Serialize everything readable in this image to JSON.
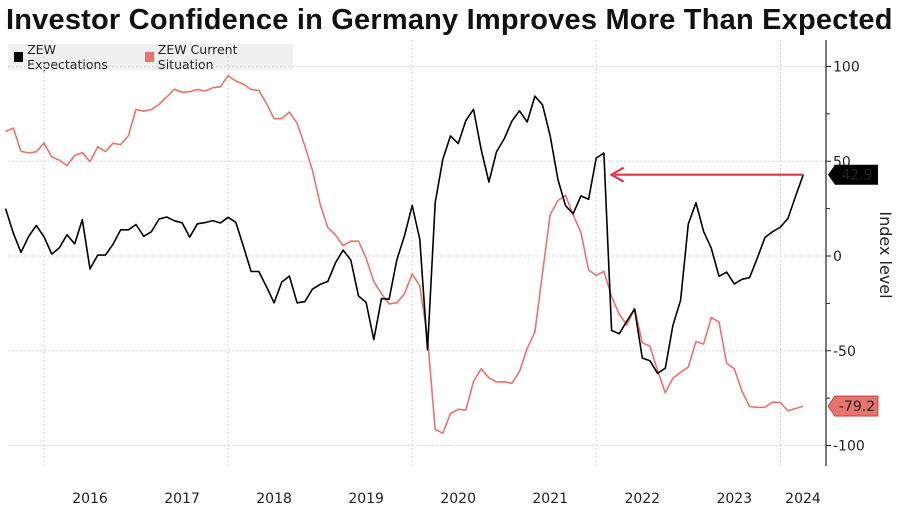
{
  "chart_data": {
    "type": "line",
    "title": "Investor Confidence in Germany Improves More Than Expected",
    "xlabel": "",
    "ylabel": "Index level",
    "ylim": [
      -110,
      115
    ],
    "yticks": [
      100,
      50,
      0,
      -50,
      -100
    ],
    "x_start": "2015-08",
    "x_end": "2024-04",
    "year_labels": [
      "2016",
      "2017",
      "2018",
      "2019",
      "2020",
      "2021",
      "2022",
      "2023",
      "2024"
    ],
    "legend_position": "top-left",
    "grid": true,
    "series": [
      {
        "name": "ZEW Expectations",
        "color": "#000000",
        "last_value_label": "42.9",
        "values": [
          25.0,
          12.1,
          1.9,
          10.4,
          16.1,
          10.2,
          1.0,
          4.3,
          11.2,
          6.4,
          19.2,
          -6.8,
          0.5,
          0.5,
          6.2,
          13.8,
          13.8,
          16.6,
          10.4,
          12.8,
          19.5,
          20.6,
          18.6,
          17.5,
          10.0,
          17.0,
          17.6,
          18.7,
          17.4,
          20.4,
          17.8,
          5.1,
          -8.2,
          -8.2,
          -16.1,
          -24.7,
          -13.7,
          -10.6,
          -24.7,
          -24.1,
          -17.5,
          -15.0,
          -13.4,
          -3.6,
          3.1,
          -2.1,
          -21.1,
          -24.5,
          -44.1,
          -22.5,
          -22.8,
          -2.1,
          10.7,
          26.7,
          8.7,
          -49.5,
          28.2,
          51.0,
          63.4,
          59.3,
          71.5,
          77.4,
          56.1,
          39.0,
          55.0,
          61.8,
          71.2,
          76.6,
          70.7,
          84.4,
          79.8,
          63.3,
          40.4,
          26.5,
          22.3,
          31.7,
          29.9,
          51.7,
          54.3,
          -39.3,
          -41.0,
          -34.3,
          -28.0,
          -53.8,
          -55.3,
          -61.9,
          -59.2,
          -36.7,
          -23.3,
          16.9,
          28.1,
          13.0,
          4.1,
          -10.7,
          -8.5,
          -14.7,
          -12.3,
          -11.4,
          -1.1,
          9.8,
          12.8,
          15.2,
          19.9,
          31.7,
          42.9
        ]
      },
      {
        "name": "ZEW Current Situation",
        "color": "#e8736c",
        "last_value_label": "-79.2",
        "values": [
          65.7,
          67.5,
          55.2,
          54.4,
          55.0,
          59.7,
          52.3,
          50.6,
          47.7,
          53.1,
          54.5,
          49.8,
          57.6,
          55.1,
          59.5,
          58.8,
          63.5,
          77.3,
          76.4,
          77.3,
          80.1,
          83.9,
          88.0,
          86.4,
          86.7,
          87.9,
          87.0,
          88.8,
          89.3,
          95.2,
          92.3,
          90.7,
          87.9,
          87.4,
          80.6,
          72.4,
          72.6,
          76.0,
          70.1,
          58.2,
          45.3,
          27.6,
          15.0,
          11.1,
          5.5,
          7.8,
          7.8,
          -1.1,
          -13.5,
          -19.9,
          -25.3,
          -24.7,
          -19.9,
          -9.5,
          -15.7,
          -43.1,
          -91.5,
          -93.5,
          -83.1,
          -80.9,
          -81.3,
          -66.2,
          -59.5,
          -64.3,
          -66.5,
          -66.4,
          -67.2,
          -61.0,
          -48.8,
          -40.1,
          -9.1,
          21.9,
          29.3,
          31.9,
          21.6,
          12.5,
          -7.4,
          -10.2,
          -8.1,
          -21.4,
          -30.8,
          -36.5,
          -27.6,
          -45.8,
          -47.6,
          -60.5,
          -72.2,
          -64.5,
          -61.4,
          -58.6,
          -45.1,
          -46.5,
          -32.5,
          -34.8,
          -56.5,
          -59.5,
          -71.3,
          -79.4,
          -79.9,
          -79.8,
          -77.1,
          -77.3,
          -81.7,
          -80.5,
          -79.2
        ]
      }
    ],
    "annotations": [
      {
        "type": "arrow",
        "from": "2024-04",
        "to": "2022-03",
        "y": 42.9,
        "color": "#d9363e"
      }
    ]
  }
}
